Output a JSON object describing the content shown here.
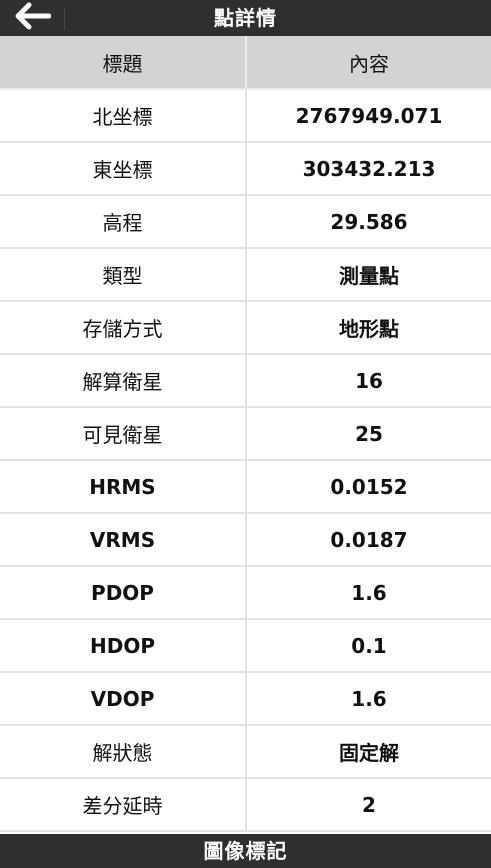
{
  "header": {
    "title": "點詳情",
    "back_icon": "arrow-left-icon"
  },
  "table": {
    "columns": [
      "標題",
      "內容"
    ],
    "rows": [
      {
        "label": "北坐標",
        "value": "2767949.071"
      },
      {
        "label": "東坐標",
        "value": "303432.213"
      },
      {
        "label": "高程",
        "value": "29.586"
      },
      {
        "label": "類型",
        "value": "測量點"
      },
      {
        "label": "存儲方式",
        "value": "地形點"
      },
      {
        "label": "解算衛星",
        "value": "16"
      },
      {
        "label": "可見衛星",
        "value": "25"
      },
      {
        "label": "HRMS",
        "value": "0.0152"
      },
      {
        "label": "VRMS",
        "value": "0.0187"
      },
      {
        "label": "PDOP",
        "value": "1.6"
      },
      {
        "label": "HDOP",
        "value": "0.1"
      },
      {
        "label": "VDOP",
        "value": "1.6"
      },
      {
        "label": "解狀態",
        "value": "固定解"
      },
      {
        "label": "差分延時",
        "value": "2"
      }
    ]
  },
  "footer": {
    "label": "圖像標記"
  },
  "colors": {
    "bar_background": "#2f2f2f",
    "column_header_background": "#d3d3d3",
    "row_background": "#ffffff",
    "divider": "#e2e2e2"
  }
}
